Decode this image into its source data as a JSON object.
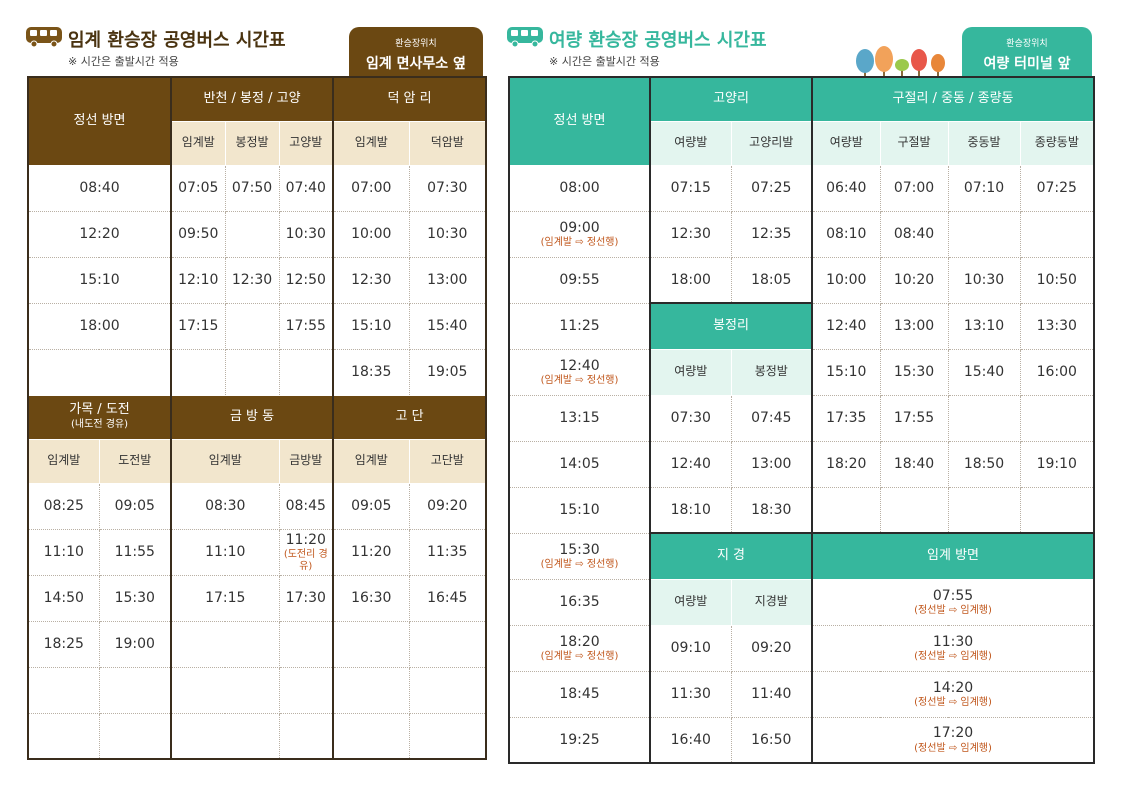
{
  "left": {
    "title": "임계 환승장 공영버스 시간표",
    "note": "※ 시간은 출발시간 적용",
    "location_label": "환승장위치",
    "location_name": "임계 면사무소 옆",
    "colors": {
      "header": "#6b4812",
      "sub_header": "#f2e6cd"
    },
    "top_headers": {
      "jeongseon": "정선 방면",
      "group1": "반천 / 봉정 / 고양",
      "group2": "덕 암 리"
    },
    "top_sub": [
      "임계발",
      "봉정발",
      "고양발",
      "임계발",
      "덕암발"
    ],
    "top_rows": [
      [
        "08:40",
        "07:05",
        "07:50",
        "07:40",
        "07:00",
        "07:30"
      ],
      [
        "12:20",
        "09:50",
        "",
        "10:30",
        "10:00",
        "10:30"
      ],
      [
        "15:10",
        "12:10",
        "12:30",
        "12:50",
        "12:30",
        "13:00"
      ],
      [
        "18:00",
        "17:15",
        "",
        "17:55",
        "15:10",
        "15:40"
      ],
      [
        "",
        "",
        "",
        "",
        "18:35",
        "19:05"
      ]
    ],
    "bottom_headers": {
      "group1": "가목 / 도전",
      "group1_note": "(내도전 경유)",
      "group2": "금 방 동",
      "group3": "고 단"
    },
    "bottom_sub": [
      "임계발",
      "도전발",
      "임계발",
      "금방발",
      "임계발",
      "고단발"
    ],
    "bottom_rows": [
      [
        "08:25",
        "09:05",
        "08:30",
        "08:45",
        "09:05",
        "09:20"
      ],
      [
        "11:10",
        "11:55",
        "11:10",
        "11:20",
        "11:20",
        "11:35"
      ],
      [
        "14:50",
        "15:30",
        "17:15",
        "17:30",
        "16:30",
        "16:45"
      ],
      [
        "18:25",
        "19:00",
        "",
        "",
        "",
        ""
      ],
      [
        "",
        "",
        "",
        "",
        "",
        ""
      ],
      [
        "",
        "",
        "",
        "",
        "",
        ""
      ]
    ],
    "bottom_notes": {
      "r1c3": "(도전리 경유)"
    }
  },
  "right": {
    "title": "여량 환승장 공영버스 시간표",
    "note": "※ 시간은 출발시간 적용",
    "location_label": "환승장위치",
    "location_name": "여량 터미널 앞",
    "colors": {
      "header": "#36b79d",
      "sub_header": "#e3f5ef"
    },
    "headers": {
      "jeongseon": "정선 방면",
      "goyang": "고양리",
      "gujeol": "구절리 / 중동 / 종량동",
      "bongjeong": "봉정리",
      "jigyeong": "지 경",
      "imgye": "임계 방면"
    },
    "goyang_sub": [
      "여량발",
      "고양리발"
    ],
    "gujeol_sub": [
      "여량발",
      "구절발",
      "중동발",
      "종량동발"
    ],
    "bongjeong_sub": [
      "여량발",
      "봉정발"
    ],
    "jigyeong_sub": [
      "여량발",
      "지경발"
    ],
    "jeongseon_times": [
      {
        "time": "08:00",
        "note": ""
      },
      {
        "time": "09:00",
        "note": "(임계발 ⇨ 정선행)"
      },
      {
        "time": "09:55",
        "note": ""
      },
      {
        "time": "11:25",
        "note": ""
      },
      {
        "time": "12:40",
        "note": "(임계발 ⇨ 정선행)"
      },
      {
        "time": "13:15",
        "note": ""
      },
      {
        "time": "14:05",
        "note": ""
      },
      {
        "time": "15:10",
        "note": ""
      },
      {
        "time": "15:30",
        "note": "(임계발 ⇨ 정선행)"
      },
      {
        "time": "16:35",
        "note": ""
      },
      {
        "time": "18:20",
        "note": "(임계발 ⇨ 정선행)"
      },
      {
        "time": "18:45",
        "note": ""
      },
      {
        "time": "19:25",
        "note": ""
      }
    ],
    "goyang_rows": [
      [
        "07:15",
        "07:25"
      ],
      [
        "12:30",
        "12:35"
      ],
      [
        "18:00",
        "18:05"
      ]
    ],
    "bongjeong_rows": [
      [
        "07:30",
        "07:45"
      ],
      [
        "12:40",
        "13:00"
      ],
      [
        "18:10",
        "18:30"
      ]
    ],
    "jigyeong_rows": [
      [
        "09:10",
        "09:20"
      ],
      [
        "11:30",
        "11:40"
      ],
      [
        "16:40",
        "16:50"
      ]
    ],
    "gujeol_rows": [
      [
        "06:40",
        "07:00",
        "07:10",
        "07:25"
      ],
      [
        "08:10",
        "08:40",
        "",
        ""
      ],
      [
        "10:00",
        "10:20",
        "10:30",
        "10:50"
      ],
      [
        "12:40",
        "13:00",
        "13:10",
        "13:30"
      ],
      [
        "15:10",
        "15:30",
        "15:40",
        "16:00"
      ],
      [
        "17:35",
        "17:55",
        "",
        ""
      ],
      [
        "18:20",
        "18:40",
        "18:50",
        "19:10"
      ],
      [
        "",
        "",
        "",
        ""
      ]
    ],
    "imgye_times": [
      {
        "time": "07:55",
        "note": "(정선발 ⇨ 임계행)"
      },
      {
        "time": "11:30",
        "note": "(정선발 ⇨ 임계행)"
      },
      {
        "time": "14:20",
        "note": "(정선발 ⇨ 임계행)"
      },
      {
        "time": "17:20",
        "note": "(정선발 ⇨ 임계행)"
      }
    ]
  }
}
